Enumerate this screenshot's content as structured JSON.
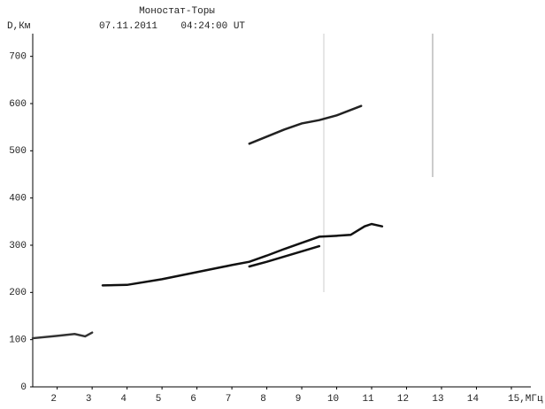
{
  "chart_data": {
    "type": "line",
    "title": "Моностат-Торы",
    "subtitle": "07.11.2011    04:24:00 UT",
    "y_label": "D,Км",
    "xlim": [
      1.3,
      15
    ],
    "ylim": [
      0,
      750
    ],
    "xticks": [
      2,
      3,
      4,
      5,
      6,
      7,
      8,
      9,
      10,
      11,
      12,
      13,
      14,
      {
        "value": 15,
        "label": "15,МГц"
      }
    ],
    "yticks": [
      0,
      100,
      200,
      300,
      400,
      500,
      600,
      700
    ],
    "series": [
      {
        "color": "#111111",
        "x": [
          3.3,
          4,
          5,
          6,
          7,
          7.5,
          8,
          8.5,
          9,
          9.5,
          10,
          10.4,
          10.8,
          11,
          11.3
        ],
        "values": [
          215,
          216,
          228,
          243,
          258,
          265,
          278,
          292,
          305,
          318,
          320,
          322,
          340,
          345,
          340
        ]
      },
      {
        "color": "#111111",
        "x": [
          7.5,
          8,
          8.5,
          9,
          9.5
        ],
        "values": [
          255,
          265,
          276,
          287,
          298
        ]
      },
      {
        "color": "#222222",
        "x": [
          7.5,
          8,
          8.5,
          9,
          9.5,
          10,
          10.7
        ],
        "values": [
          515,
          530,
          545,
          558,
          565,
          575,
          595
        ]
      },
      {
        "color": "#333333",
        "x": [
          1.3,
          2,
          2.5,
          2.8,
          3
        ],
        "values": [
          103,
          108,
          112,
          107,
          115
        ]
      }
    ]
  }
}
